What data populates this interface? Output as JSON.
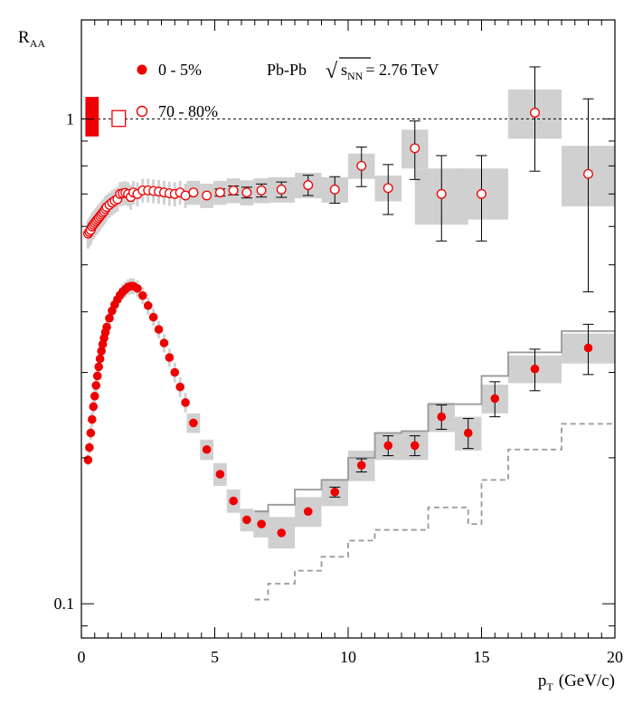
{
  "chart_data": {
    "type": "scatter",
    "yscale": "log",
    "ylabel": "R",
    "ylabel_sub": "AA",
    "xlabel": "p",
    "xlabel_sub": "T",
    "xlabel_unit": "(GeV/c)",
    "xlim": [
      0,
      20
    ],
    "ylim": [
      0.085,
      1.6
    ],
    "x_ticks": [
      0,
      5,
      10,
      15,
      20
    ],
    "y_tick_labels": [
      {
        "value": 0.1,
        "label": "0.1"
      },
      {
        "value": 1,
        "label": "1"
      }
    ],
    "reference_line": 1,
    "annotation": {
      "system": "Pb-Pb",
      "sqrt_symbol": "√",
      "energy_var": "s",
      "energy_sub": "NN",
      "energy_val": "= 2.76 TeV"
    },
    "norm_uncertainty": [
      {
        "x": 0.4,
        "width": 0.5,
        "low": 0.92,
        "high": 1.11,
        "filled": true
      },
      {
        "x": 1.4,
        "width": 0.5,
        "low": 0.965,
        "high": 1.04,
        "filled": false
      }
    ],
    "series": [
      {
        "name": "0 - 5%",
        "marker": "filled-circle",
        "color": "#ee0000",
        "points": [
          {
            "x": 0.25,
            "y": 0.198,
            "syslo": 0.193,
            "syshi": 0.203
          },
          {
            "x": 0.3,
            "y": 0.21,
            "syslo": 0.204,
            "syshi": 0.216
          },
          {
            "x": 0.35,
            "y": 0.225,
            "syslo": 0.218,
            "syshi": 0.232
          },
          {
            "x": 0.4,
            "y": 0.24,
            "syslo": 0.232,
            "syshi": 0.248
          },
          {
            "x": 0.45,
            "y": 0.255,
            "syslo": 0.247,
            "syshi": 0.263
          },
          {
            "x": 0.5,
            "y": 0.268,
            "syslo": 0.259,
            "syshi": 0.277
          },
          {
            "x": 0.55,
            "y": 0.282,
            "syslo": 0.272,
            "syshi": 0.292
          },
          {
            "x": 0.6,
            "y": 0.295,
            "syslo": 0.285,
            "syshi": 0.305
          },
          {
            "x": 0.65,
            "y": 0.308,
            "syslo": 0.297,
            "syshi": 0.319
          },
          {
            "x": 0.7,
            "y": 0.32,
            "syslo": 0.309,
            "syshi": 0.331
          },
          {
            "x": 0.75,
            "y": 0.332,
            "syslo": 0.32,
            "syshi": 0.344
          },
          {
            "x": 0.8,
            "y": 0.343,
            "syslo": 0.331,
            "syshi": 0.355
          },
          {
            "x": 0.85,
            "y": 0.353,
            "syslo": 0.34,
            "syshi": 0.366
          },
          {
            "x": 0.9,
            "y": 0.363,
            "syslo": 0.35,
            "syshi": 0.376
          },
          {
            "x": 0.95,
            "y": 0.372,
            "syslo": 0.358,
            "syshi": 0.386
          },
          {
            "x": 1.05,
            "y": 0.388,
            "syslo": 0.374,
            "syshi": 0.402
          },
          {
            "x": 1.15,
            "y": 0.402,
            "syslo": 0.387,
            "syshi": 0.417
          },
          {
            "x": 1.25,
            "y": 0.414,
            "syslo": 0.398,
            "syshi": 0.43
          },
          {
            "x": 1.35,
            "y": 0.424,
            "syslo": 0.408,
            "syshi": 0.44
          },
          {
            "x": 1.45,
            "y": 0.433,
            "syslo": 0.417,
            "syshi": 0.449
          },
          {
            "x": 1.55,
            "y": 0.44,
            "syslo": 0.423,
            "syshi": 0.457
          },
          {
            "x": 1.65,
            "y": 0.445,
            "syslo": 0.428,
            "syshi": 0.462
          },
          {
            "x": 1.75,
            "y": 0.45,
            "syslo": 0.433,
            "syshi": 0.467
          },
          {
            "x": 1.85,
            "y": 0.452,
            "syslo": 0.435,
            "syshi": 0.469
          },
          {
            "x": 1.95,
            "y": 0.452,
            "syslo": 0.435,
            "syshi": 0.469
          },
          {
            "x": 2.1,
            "y": 0.447,
            "syslo": 0.43,
            "syshi": 0.464
          },
          {
            "x": 2.3,
            "y": 0.432,
            "syslo": 0.415,
            "syshi": 0.449
          },
          {
            "x": 2.5,
            "y": 0.412,
            "syslo": 0.395,
            "syshi": 0.429
          },
          {
            "x": 2.7,
            "y": 0.39,
            "syslo": 0.374,
            "syshi": 0.406
          },
          {
            "x": 2.9,
            "y": 0.368,
            "syslo": 0.353,
            "syshi": 0.383
          },
          {
            "x": 3.1,
            "y": 0.345,
            "syslo": 0.33,
            "syshi": 0.36
          },
          {
            "x": 3.3,
            "y": 0.322,
            "syslo": 0.308,
            "syshi": 0.336
          },
          {
            "x": 3.5,
            "y": 0.3,
            "syslo": 0.286,
            "syshi": 0.314
          },
          {
            "x": 3.7,
            "y": 0.28,
            "syslo": 0.267,
            "syshi": 0.293
          },
          {
            "x": 3.9,
            "y": 0.26,
            "syslo": 0.248,
            "syshi": 0.272
          },
          {
            "x": 4.2,
            "y": 0.236,
            "syslo": 0.225,
            "syshi": 0.247,
            "w": 0.25
          },
          {
            "x": 4.7,
            "y": 0.208,
            "syslo": 0.198,
            "syshi": 0.218,
            "w": 0.25
          },
          {
            "x": 5.2,
            "y": 0.185,
            "syslo": 0.175,
            "syshi": 0.195,
            "w": 0.25
          },
          {
            "x": 5.7,
            "y": 0.163,
            "syslo": 0.154,
            "syshi": 0.172,
            "w": 0.25
          },
          {
            "x": 6.2,
            "y": 0.149,
            "syslo": 0.141,
            "syshi": 0.157,
            "w": 0.25
          },
          {
            "x": 6.75,
            "y": 0.146,
            "syslo": 0.137,
            "syshi": 0.156,
            "w": 0.3
          },
          {
            "x": 7.5,
            "y": 0.14,
            "syslo": 0.13,
            "syshi": 0.151,
            "w": 0.5
          },
          {
            "x": 8.5,
            "y": 0.155,
            "syslo": 0.144,
            "syshi": 0.166,
            "w": 0.5
          },
          {
            "x": 9.5,
            "y": 0.17,
            "syslo": 0.159,
            "syshi": 0.181,
            "w": 0.5,
            "staterr": 0.004
          },
          {
            "x": 10.5,
            "y": 0.193,
            "syslo": 0.179,
            "syshi": 0.207,
            "w": 0.5,
            "staterr": 0.006
          },
          {
            "x": 11.5,
            "y": 0.212,
            "syslo": 0.198,
            "syshi": 0.226,
            "w": 0.5,
            "staterr": 0.01
          },
          {
            "x": 12.5,
            "y": 0.212,
            "syslo": 0.198,
            "syshi": 0.226,
            "w": 0.5,
            "staterr": 0.01
          },
          {
            "x": 13.5,
            "y": 0.243,
            "syslo": 0.226,
            "syshi": 0.26,
            "w": 0.5,
            "staterr": 0.014
          },
          {
            "x": 14.5,
            "y": 0.225,
            "syslo": 0.207,
            "syshi": 0.243,
            "w": 0.5,
            "staterr": 0.016
          },
          {
            "x": 15.5,
            "y": 0.265,
            "syslo": 0.247,
            "syshi": 0.283,
            "w": 0.5,
            "staterr": 0.022
          },
          {
            "x": 17,
            "y": 0.305,
            "syslo": 0.285,
            "syshi": 0.325,
            "w": 1,
            "staterr": 0.03
          },
          {
            "x": 19,
            "y": 0.337,
            "syslo": 0.313,
            "syshi": 0.361,
            "w": 1,
            "staterr": 0.04
          }
        ]
      },
      {
        "name": "70 - 80%",
        "marker": "open-circle",
        "color": "#ee0000",
        "points": [
          {
            "x": 0.25,
            "y": 0.58,
            "syslo": 0.54,
            "syshi": 0.62
          },
          {
            "x": 0.3,
            "y": 0.585,
            "syslo": 0.545,
            "syshi": 0.625
          },
          {
            "x": 0.35,
            "y": 0.59,
            "syslo": 0.55,
            "syshi": 0.63
          },
          {
            "x": 0.4,
            "y": 0.6,
            "syslo": 0.56,
            "syshi": 0.64
          },
          {
            "x": 0.45,
            "y": 0.605,
            "syslo": 0.565,
            "syshi": 0.645
          },
          {
            "x": 0.5,
            "y": 0.61,
            "syslo": 0.57,
            "syshi": 0.65
          },
          {
            "x": 0.55,
            "y": 0.615,
            "syslo": 0.575,
            "syshi": 0.655
          },
          {
            "x": 0.6,
            "y": 0.62,
            "syslo": 0.58,
            "syshi": 0.66
          },
          {
            "x": 0.65,
            "y": 0.625,
            "syslo": 0.585,
            "syshi": 0.665
          },
          {
            "x": 0.7,
            "y": 0.63,
            "syslo": 0.59,
            "syshi": 0.67
          },
          {
            "x": 0.75,
            "y": 0.635,
            "syslo": 0.595,
            "syshi": 0.675
          },
          {
            "x": 0.8,
            "y": 0.64,
            "syslo": 0.6,
            "syshi": 0.68
          },
          {
            "x": 0.85,
            "y": 0.645,
            "syslo": 0.605,
            "syshi": 0.685
          },
          {
            "x": 0.9,
            "y": 0.652,
            "syslo": 0.612,
            "syshi": 0.692
          },
          {
            "x": 0.95,
            "y": 0.658,
            "syslo": 0.618,
            "syshi": 0.698
          },
          {
            "x": 1.05,
            "y": 0.665,
            "syslo": 0.625,
            "syshi": 0.705
          },
          {
            "x": 1.15,
            "y": 0.672,
            "syslo": 0.632,
            "syshi": 0.712
          },
          {
            "x": 1.25,
            "y": 0.678,
            "syslo": 0.638,
            "syshi": 0.718
          },
          {
            "x": 1.35,
            "y": 0.683,
            "syslo": 0.643,
            "syshi": 0.723
          },
          {
            "x": 1.45,
            "y": 0.7,
            "syslo": 0.66,
            "syshi": 0.74
          },
          {
            "x": 1.55,
            "y": 0.702,
            "syslo": 0.662,
            "syshi": 0.742
          },
          {
            "x": 1.65,
            "y": 0.704,
            "syslo": 0.664,
            "syshi": 0.744
          },
          {
            "x": 1.75,
            "y": 0.7,
            "syslo": 0.66,
            "syshi": 0.74
          },
          {
            "x": 1.85,
            "y": 0.69,
            "syslo": 0.65,
            "syshi": 0.73
          },
          {
            "x": 1.95,
            "y": 0.705,
            "syslo": 0.665,
            "syshi": 0.745
          },
          {
            "x": 2.1,
            "y": 0.7,
            "syslo": 0.66,
            "syshi": 0.74
          },
          {
            "x": 2.3,
            "y": 0.712,
            "syslo": 0.672,
            "syshi": 0.752
          },
          {
            "x": 2.5,
            "y": 0.712,
            "syslo": 0.672,
            "syshi": 0.752
          },
          {
            "x": 2.7,
            "y": 0.71,
            "syslo": 0.67,
            "syshi": 0.75
          },
          {
            "x": 2.9,
            "y": 0.708,
            "syslo": 0.668,
            "syshi": 0.748
          },
          {
            "x": 3.1,
            "y": 0.705,
            "syslo": 0.665,
            "syshi": 0.745
          },
          {
            "x": 3.3,
            "y": 0.702,
            "syslo": 0.662,
            "syshi": 0.742
          },
          {
            "x": 3.5,
            "y": 0.7,
            "syslo": 0.66,
            "syshi": 0.74
          },
          {
            "x": 3.7,
            "y": 0.705,
            "syslo": 0.665,
            "syshi": 0.745
          },
          {
            "x": 3.9,
            "y": 0.695,
            "syslo": 0.655,
            "syshi": 0.735
          },
          {
            "x": 4.2,
            "y": 0.705,
            "syslo": 0.665,
            "syshi": 0.745,
            "w": 0.25
          },
          {
            "x": 4.7,
            "y": 0.695,
            "syslo": 0.655,
            "syshi": 0.735,
            "w": 0.25
          },
          {
            "x": 5.2,
            "y": 0.705,
            "syslo": 0.665,
            "syshi": 0.745,
            "w": 0.25,
            "staterr": 0.012
          },
          {
            "x": 5.7,
            "y": 0.712,
            "syslo": 0.67,
            "syshi": 0.754,
            "w": 0.25,
            "staterr": 0.015
          },
          {
            "x": 6.2,
            "y": 0.705,
            "syslo": 0.663,
            "syshi": 0.747,
            "w": 0.25,
            "staterr": 0.018
          },
          {
            "x": 6.75,
            "y": 0.712,
            "syslo": 0.67,
            "syshi": 0.754,
            "w": 0.3,
            "staterr": 0.022
          },
          {
            "x": 7.5,
            "y": 0.715,
            "syslo": 0.672,
            "syshi": 0.758,
            "w": 0.5,
            "staterr": 0.026
          },
          {
            "x": 8.5,
            "y": 0.73,
            "syslo": 0.686,
            "syshi": 0.774,
            "w": 0.5,
            "staterr": 0.035
          },
          {
            "x": 9.5,
            "y": 0.715,
            "syslo": 0.672,
            "syshi": 0.758,
            "w": 0.5,
            "staterr": 0.045
          },
          {
            "x": 10.5,
            "y": 0.8,
            "syslo": 0.752,
            "syshi": 0.848,
            "w": 0.5,
            "staterr": 0.075
          },
          {
            "x": 11.5,
            "y": 0.72,
            "syslo": 0.676,
            "syshi": 0.764,
            "w": 0.5,
            "staterr": 0.085
          },
          {
            "x": 12.5,
            "y": 0.87,
            "syslo": 0.79,
            "syshi": 0.95,
            "w": 0.5,
            "staterr": 0.12
          },
          {
            "x": 13.5,
            "y": 0.7,
            "syslo": 0.605,
            "syshi": 0.79,
            "w": 1,
            "staterr": 0.14
          },
          {
            "x": 15,
            "y": 0.7,
            "syslo": 0.62,
            "syshi": 0.79,
            "w": 1,
            "staterr": 0.14
          },
          {
            "x": 17,
            "y": 1.03,
            "syslo": 0.91,
            "syshi": 1.15,
            "w": 1,
            "staterr": 0.25
          },
          {
            "x": 19,
            "y": 0.77,
            "syslo": 0.66,
            "syshi": 0.88,
            "w": 1,
            "staterr": 0.33
          }
        ]
      }
    ],
    "model_curves": [
      {
        "name": "upper-step-model",
        "style": "solid",
        "color": "#999999",
        "steps": [
          [
            6.5,
            0.155
          ],
          [
            7,
            0.16
          ],
          [
            8,
            0.172
          ],
          [
            9,
            0.18
          ],
          [
            10,
            0.2
          ],
          [
            11,
            0.225
          ],
          [
            12,
            0.227
          ],
          [
            13,
            0.258
          ],
          [
            14,
            0.258
          ],
          [
            15,
            0.295
          ],
          [
            16,
            0.33
          ],
          [
            18,
            0.365
          ],
          [
            20,
            0.365
          ]
        ]
      },
      {
        "name": "lower-step-model",
        "style": "dashed",
        "color": "#999999",
        "steps": [
          [
            6.5,
            0.102
          ],
          [
            7,
            0.11
          ],
          [
            8,
            0.117
          ],
          [
            9,
            0.125
          ],
          [
            10,
            0.135
          ],
          [
            11,
            0.142
          ],
          [
            12,
            0.142
          ],
          [
            13,
            0.158
          ],
          [
            14,
            0.158
          ],
          [
            14.5,
            0.146
          ],
          [
            15,
            0.18
          ],
          [
            16,
            0.208
          ],
          [
            18,
            0.235
          ],
          [
            20,
            0.235
          ]
        ]
      }
    ]
  }
}
